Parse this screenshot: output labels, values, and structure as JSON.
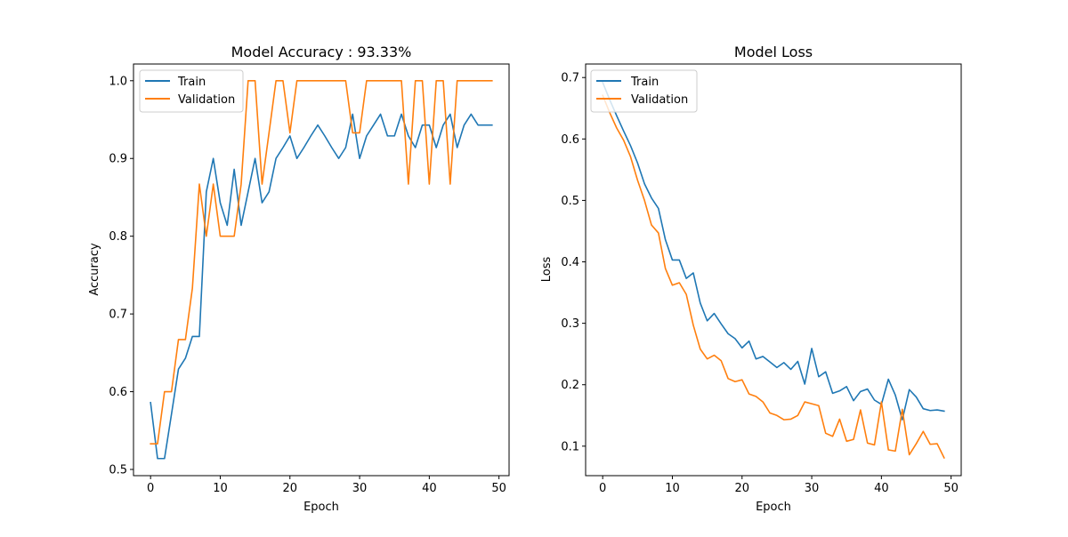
{
  "colors": {
    "train": "#1f77b4",
    "validation": "#ff7f0e"
  },
  "chart_data": [
    {
      "type": "line",
      "title": "Model Accuracy : 93.33%",
      "xlabel": "Epoch",
      "ylabel": "Accuracy",
      "xlim": [
        -2.45,
        51.45
      ],
      "ylim": [
        0.492,
        1.0215
      ],
      "xticks": [
        0,
        10,
        20,
        30,
        40,
        50
      ],
      "yticks": [
        0.5,
        0.6,
        0.7,
        0.8,
        0.9,
        1.0
      ],
      "ytick_labels": [
        "0.5",
        "0.6",
        "0.7",
        "0.8",
        "0.9",
        "1.0"
      ],
      "legend_position": "upper-left",
      "grid": false,
      "x": [
        0,
        1,
        2,
        3,
        4,
        5,
        6,
        7,
        8,
        9,
        10,
        11,
        12,
        13,
        14,
        15,
        16,
        17,
        18,
        19,
        20,
        21,
        22,
        23,
        24,
        25,
        26,
        27,
        28,
        29,
        30,
        31,
        32,
        33,
        34,
        35,
        36,
        37,
        38,
        39,
        40,
        41,
        42,
        43,
        44,
        45,
        46,
        47,
        48,
        49
      ],
      "series": [
        {
          "name": "Train",
          "values": [
            0.586,
            0.514,
            0.514,
            0.571,
            0.629,
            0.643,
            0.671,
            0.671,
            0.857,
            0.9,
            0.843,
            0.814,
            0.886,
            0.814,
            0.857,
            0.9,
            0.843,
            0.857,
            0.9,
            0.914,
            0.929,
            0.9,
            0.914,
            0.929,
            0.943,
            0.929,
            0.914,
            0.9,
            0.914,
            0.957,
            0.9,
            0.929,
            0.943,
            0.957,
            0.929,
            0.929,
            0.957,
            0.929,
            0.914,
            0.943,
            0.943,
            0.914,
            0.943,
            0.957,
            0.914,
            0.943,
            0.957,
            0.943,
            0.943,
            0.943
          ]
        },
        {
          "name": "Validation",
          "values": [
            0.533,
            0.533,
            0.6,
            0.6,
            0.667,
            0.667,
            0.733,
            0.867,
            0.8,
            0.867,
            0.8,
            0.8,
            0.8,
            0.867,
            1.0,
            1.0,
            0.867,
            0.933,
            1.0,
            1.0,
            0.933,
            1.0,
            1.0,
            1.0,
            1.0,
            1.0,
            1.0,
            1.0,
            1.0,
            0.933,
            0.933,
            1.0,
            1.0,
            1.0,
            1.0,
            1.0,
            1.0,
            0.867,
            1.0,
            1.0,
            0.867,
            1.0,
            1.0,
            0.867,
            1.0,
            1.0,
            1.0,
            1.0,
            1.0,
            1.0
          ]
        }
      ]
    },
    {
      "type": "line",
      "title": "Model Loss",
      "xlabel": "Epoch",
      "ylabel": "Loss",
      "xlim": [
        -2.45,
        51.45
      ],
      "ylim": [
        0.052,
        0.722
      ],
      "xticks": [
        0,
        10,
        20,
        30,
        40,
        50
      ],
      "yticks": [
        0.1,
        0.2,
        0.3,
        0.4,
        0.5,
        0.6,
        0.7
      ],
      "ytick_labels": [
        "0.1",
        "0.2",
        "0.3",
        "0.4",
        "0.5",
        "0.6",
        "0.7"
      ],
      "legend_position": "upper-left",
      "grid": false,
      "x": [
        0,
        1,
        2,
        3,
        4,
        5,
        6,
        7,
        8,
        9,
        10,
        11,
        12,
        13,
        14,
        15,
        16,
        17,
        18,
        19,
        20,
        21,
        22,
        23,
        24,
        25,
        26,
        27,
        28,
        29,
        30,
        31,
        32,
        33,
        34,
        35,
        36,
        37,
        38,
        39,
        40,
        41,
        42,
        43,
        44,
        45,
        46,
        47,
        48,
        49
      ],
      "series": [
        {
          "name": "Train",
          "values": [
            0.692,
            0.664,
            0.638,
            0.613,
            0.589,
            0.561,
            0.527,
            0.504,
            0.487,
            0.436,
            0.403,
            0.403,
            0.373,
            0.382,
            0.333,
            0.304,
            0.316,
            0.299,
            0.283,
            0.275,
            0.26,
            0.271,
            0.242,
            0.246,
            0.237,
            0.228,
            0.236,
            0.225,
            0.238,
            0.201,
            0.259,
            0.213,
            0.221,
            0.186,
            0.19,
            0.197,
            0.174,
            0.189,
            0.193,
            0.175,
            0.168,
            0.209,
            0.183,
            0.143,
            0.192,
            0.18,
            0.161,
            0.158,
            0.159,
            0.157
          ]
        },
        {
          "name": "Validation",
          "values": [
            0.671,
            0.643,
            0.618,
            0.598,
            0.571,
            0.533,
            0.5,
            0.46,
            0.447,
            0.389,
            0.362,
            0.366,
            0.347,
            0.297,
            0.258,
            0.242,
            0.248,
            0.239,
            0.21,
            0.205,
            0.208,
            0.185,
            0.181,
            0.172,
            0.154,
            0.15,
            0.143,
            0.144,
            0.15,
            0.172,
            0.169,
            0.166,
            0.121,
            0.116,
            0.144,
            0.108,
            0.111,
            0.159,
            0.105,
            0.102,
            0.172,
            0.094,
            0.092,
            0.16,
            0.086,
            0.104,
            0.124,
            0.103,
            0.104,
            0.081
          ]
        }
      ]
    }
  ]
}
